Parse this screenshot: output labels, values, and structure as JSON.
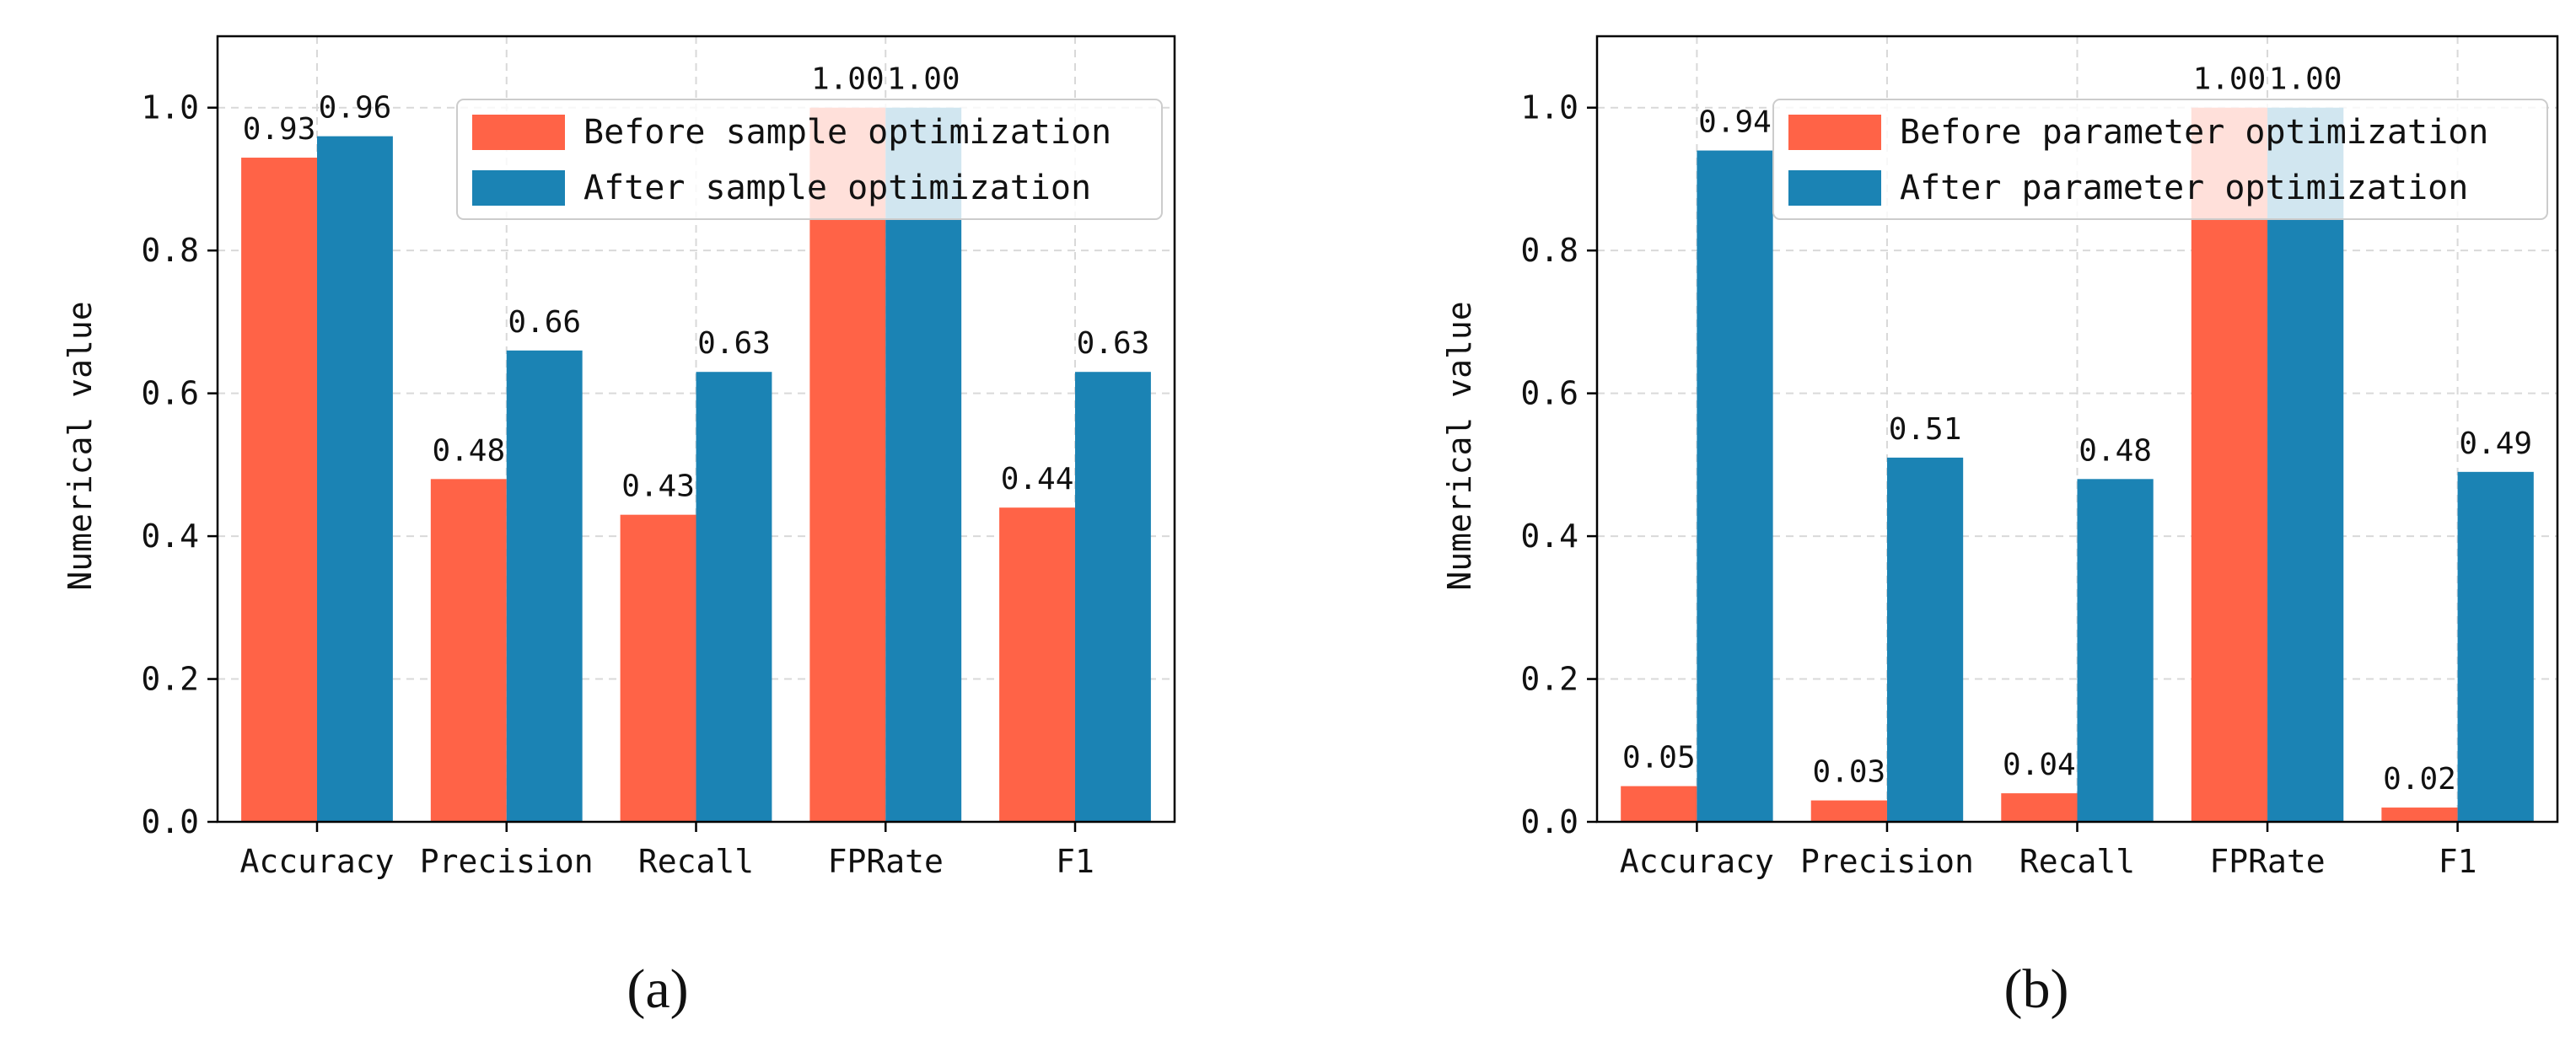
{
  "figure": {
    "colors": {
      "before": "#FF6347",
      "after": "#1B83B4",
      "grid": "#d9d9d9",
      "axis": "#000000"
    }
  },
  "chart_data": [
    {
      "type": "bar",
      "panel_label": "(a)",
      "categories": [
        "Accuracy",
        "Precision",
        "Recall",
        "FPRate",
        "F1"
      ],
      "series": [
        {
          "name": "Before sample optimization",
          "values": [
            0.93,
            0.48,
            0.43,
            1.0,
            0.44
          ],
          "labels": [
            "0.93",
            "0.48",
            "0.43",
            "1.00",
            "0.44"
          ]
        },
        {
          "name": "After sample optimization",
          "values": [
            0.96,
            0.66,
            0.63,
            1.0,
            0.63
          ],
          "labels": [
            "0.96",
            "0.66",
            "0.63",
            "1.00",
            "0.63"
          ]
        }
      ],
      "title": "",
      "xlabel": "",
      "ylabel": "Numerical value",
      "ylim": [
        0,
        1.1
      ],
      "yticks": [
        0.0,
        0.2,
        0.4,
        0.6,
        0.8,
        1.0
      ],
      "ytick_labels": [
        "0.0",
        "0.2",
        "0.4",
        "0.6",
        "0.8",
        "1.0"
      ],
      "grid": true,
      "legend_position": "top-right"
    },
    {
      "type": "bar",
      "panel_label": "(b)",
      "categories": [
        "Accuracy",
        "Precision",
        "Recall",
        "FPRate",
        "F1"
      ],
      "series": [
        {
          "name": "Before parameter optimization",
          "values": [
            0.05,
            0.03,
            0.04,
            1.0,
            0.02
          ],
          "labels": [
            "0.05",
            "0.03",
            "0.04",
            "1.00",
            "0.02"
          ]
        },
        {
          "name": "After parameter optimization",
          "values": [
            0.94,
            0.51,
            0.48,
            1.0,
            0.49
          ],
          "labels": [
            "0.94",
            "0.51",
            "0.48",
            "1.00",
            "0.49"
          ]
        }
      ],
      "title": "",
      "xlabel": "",
      "ylabel": "Numerical value",
      "ylim": [
        0,
        1.1
      ],
      "yticks": [
        0.0,
        0.2,
        0.4,
        0.6,
        0.8,
        1.0
      ],
      "ytick_labels": [
        "0.0",
        "0.2",
        "0.4",
        "0.6",
        "0.8",
        "1.0"
      ],
      "grid": true,
      "legend_position": "top-right"
    }
  ]
}
